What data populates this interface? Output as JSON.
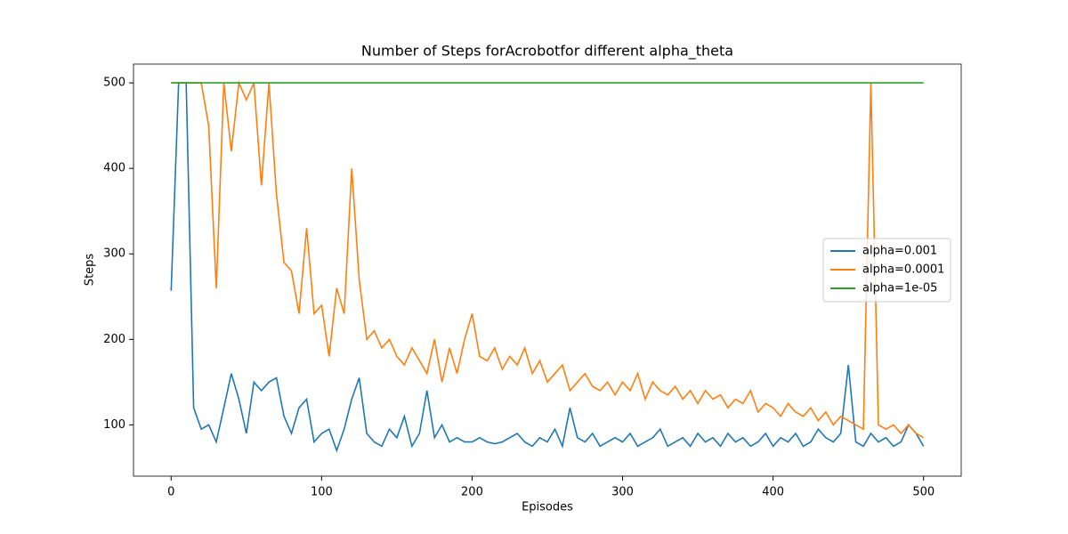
{
  "chart_data": {
    "type": "line",
    "title": "Number of Steps forAcrobotfor different alpha_theta",
    "x_label": "Episodes",
    "y_label": "Steps",
    "x": [
      0,
      5,
      10,
      15,
      20,
      25,
      30,
      35,
      40,
      45,
      50,
      55,
      60,
      65,
      70,
      75,
      80,
      85,
      90,
      95,
      100,
      105,
      110,
      115,
      120,
      125,
      130,
      135,
      140,
      145,
      150,
      155,
      160,
      165,
      170,
      175,
      180,
      185,
      190,
      195,
      200,
      205,
      210,
      215,
      220,
      225,
      230,
      235,
      240,
      245,
      250,
      255,
      260,
      265,
      270,
      275,
      280,
      285,
      290,
      295,
      300,
      305,
      310,
      315,
      320,
      325,
      330,
      335,
      340,
      345,
      350,
      355,
      360,
      365,
      370,
      375,
      380,
      385,
      390,
      395,
      400,
      405,
      410,
      415,
      420,
      425,
      430,
      435,
      440,
      445,
      450,
      455,
      460,
      465,
      470,
      475,
      480,
      485,
      490,
      495,
      500
    ],
    "series": [
      {
        "name": "alpha=0.001",
        "color": "#1f77b4",
        "values": [
          257,
          500,
          500,
          120,
          95,
          100,
          80,
          120,
          160,
          130,
          90,
          150,
          140,
          150,
          155,
          110,
          90,
          120,
          130,
          80,
          90,
          95,
          70,
          95,
          130,
          155,
          90,
          80,
          75,
          95,
          85,
          110,
          75,
          90,
          140,
          85,
          100,
          80,
          85,
          80,
          80,
          85,
          80,
          78,
          80,
          85,
          90,
          80,
          75,
          85,
          80,
          95,
          75,
          120,
          85,
          80,
          90,
          75,
          80,
          85,
          80,
          90,
          75,
          80,
          85,
          95,
          75,
          80,
          85,
          75,
          90,
          80,
          85,
          75,
          90,
          80,
          85,
          75,
          80,
          90,
          75,
          85,
          80,
          90,
          75,
          80,
          95,
          85,
          80,
          90,
          170,
          80,
          75,
          90,
          80,
          85,
          75,
          80,
          100,
          90,
          75
        ]
      },
      {
        "name": "alpha=0.0001",
        "color": "#ff7f0e",
        "values": [
          500,
          500,
          500,
          500,
          500,
          450,
          260,
          500,
          420,
          500,
          480,
          500,
          380,
          500,
          370,
          290,
          280,
          230,
          330,
          230,
          240,
          180,
          260,
          230,
          400,
          270,
          200,
          210,
          190,
          200,
          180,
          170,
          190,
          175,
          160,
          200,
          150,
          190,
          160,
          200,
          230,
          180,
          175,
          190,
          165,
          180,
          170,
          190,
          160,
          175,
          150,
          160,
          170,
          140,
          150,
          160,
          145,
          140,
          150,
          135,
          150,
          140,
          160,
          130,
          150,
          140,
          135,
          145,
          130,
          140,
          125,
          140,
          130,
          135,
          120,
          130,
          125,
          140,
          115,
          125,
          120,
          110,
          125,
          115,
          110,
          120,
          105,
          115,
          100,
          110,
          105,
          100,
          95,
          500,
          100,
          95,
          100,
          90,
          100,
          90,
          85
        ]
      },
      {
        "name": "alpha=1e-05",
        "color": "#2ca02c",
        "values": [
          500,
          500,
          500,
          500,
          500,
          500,
          500,
          500,
          500,
          500,
          500,
          500,
          500,
          500,
          500,
          500,
          500,
          500,
          500,
          500,
          500,
          500,
          500,
          500,
          500,
          500,
          500,
          500,
          500,
          500,
          500,
          500,
          500,
          500,
          500,
          500,
          500,
          500,
          500,
          500,
          500,
          500,
          500,
          500,
          500,
          500,
          500,
          500,
          500,
          500,
          500,
          500,
          500,
          500,
          500,
          500,
          500,
          500,
          500,
          500,
          500,
          500,
          500,
          500,
          500,
          500,
          500,
          500,
          500,
          500,
          500,
          500,
          500,
          500,
          500,
          500,
          500,
          500,
          500,
          500,
          500,
          500,
          500,
          500,
          500,
          500,
          500,
          500,
          500,
          500,
          500,
          500,
          500,
          500,
          500,
          500,
          500,
          500,
          500,
          500,
          500
        ]
      }
    ],
    "xlim": [
      -25,
      525
    ],
    "ylim": [
      40,
      522
    ],
    "xticks": [
      0,
      100,
      200,
      300,
      400,
      500
    ],
    "yticks": [
      100,
      200,
      300,
      400,
      500
    ],
    "legend": "center right"
  }
}
